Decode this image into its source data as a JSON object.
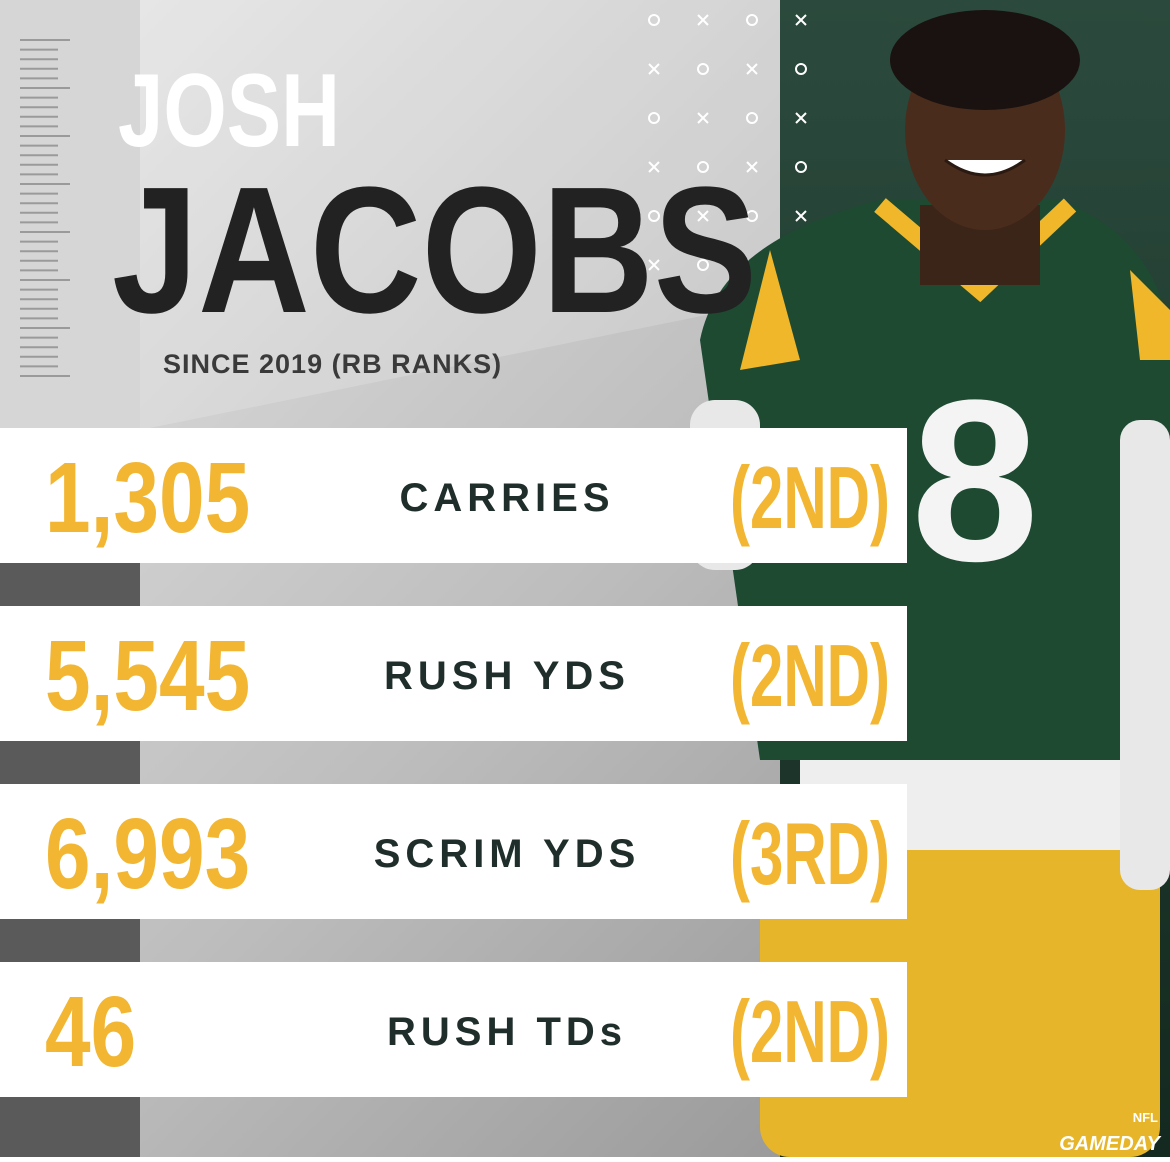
{
  "header": {
    "first_name": "JOSH",
    "last_name": "JACOBS",
    "subtitle": "SINCE 2019 (RB RANKS)"
  },
  "stats": [
    {
      "value": "1,305",
      "label": "CARRIES",
      "rank": "(2ND)"
    },
    {
      "value": "5,545",
      "label": "RUSH YDS",
      "rank": "(2ND)"
    },
    {
      "value": "6,993",
      "label": "SCRIM YDS",
      "rank": "(3RD)"
    },
    {
      "value": "46",
      "label": "RUSH TDs",
      "rank": "(2ND)"
    }
  ],
  "photo": {
    "jersey_number": "8"
  },
  "footer": {
    "logo": "NFL",
    "brand": "GAMEDAY"
  }
}
